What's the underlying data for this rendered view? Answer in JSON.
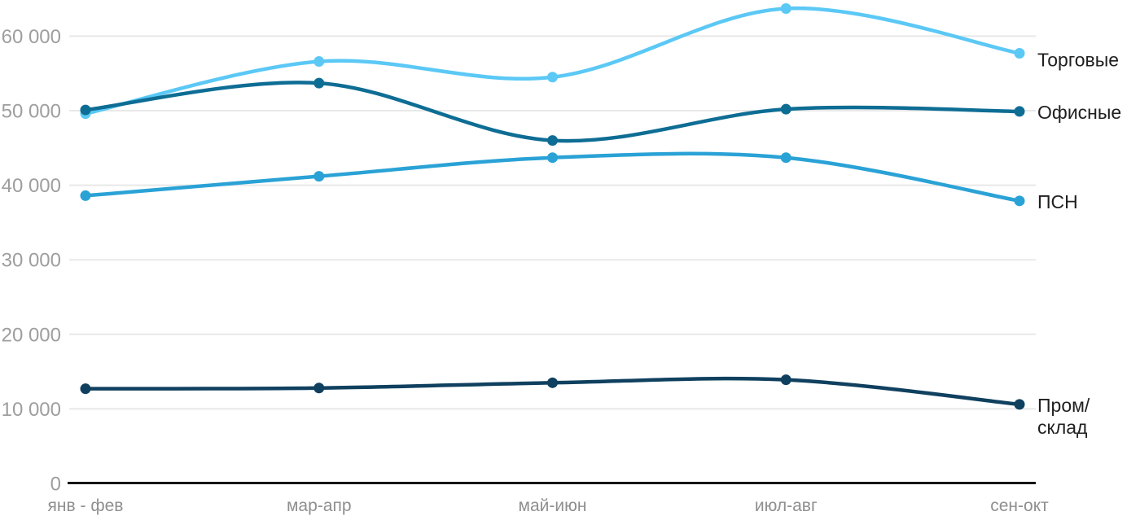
{
  "chart_data": {
    "type": "line",
    "title": "",
    "xlabel": "",
    "ylabel": "",
    "categories": [
      "янв - фев",
      "мар-апр",
      "май-июн",
      "июл-авг",
      "сен-окт"
    ],
    "series": [
      {
        "name": "Торговые",
        "color": "#5bc8f5",
        "values": [
          49600,
          56600,
          54500,
          63700,
          57700
        ],
        "label_lines": [
          "Торговые"
        ]
      },
      {
        "name": "Офисные",
        "color": "#0e6d94",
        "values": [
          50100,
          53700,
          46000,
          50200,
          49900
        ],
        "label_lines": [
          "Офисные"
        ]
      },
      {
        "name": "ПСН",
        "color": "#2aa2d6",
        "values": [
          38600,
          41200,
          43700,
          43700,
          37900
        ],
        "label_lines": [
          "ПСН"
        ]
      },
      {
        "name": "Пром/склад",
        "color": "#10405f",
        "values": [
          12700,
          12800,
          13500,
          13900,
          10600
        ],
        "label_lines": [
          "Пром/",
          "склад"
        ]
      }
    ],
    "yticks": [
      {
        "value": 0,
        "label": "0"
      },
      {
        "value": 10000,
        "label": "10 000"
      },
      {
        "value": 20000,
        "label": "20 000"
      },
      {
        "value": 30000,
        "label": "30 000"
      },
      {
        "value": 40000,
        "label": "40 000"
      },
      {
        "value": 50000,
        "label": "50 000"
      },
      {
        "value": 60000,
        "label": "60 000"
      }
    ],
    "ylim": [
      0,
      65000
    ],
    "grid": "horizontal",
    "legend_position": "end-of-line-right",
    "colors": {
      "grid": "#e8e8e8",
      "axis": "#161616",
      "ytick_text": "#9e9e9e",
      "xtick_text": "#8f8f8f",
      "series_label_text": "#1f1f1f",
      "background": "#ffffff"
    }
  }
}
